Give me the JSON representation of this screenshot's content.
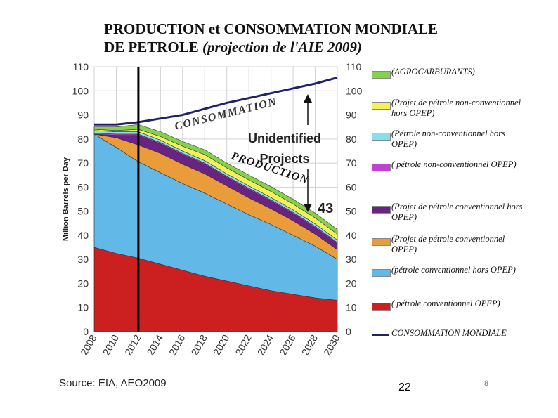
{
  "title_line1": "PRODUCTION et CONSOMMATION MONDIALE",
  "title_line2a": "DE PETROLE ",
  "title_line2b": "(projection de l'AIE 2009)",
  "source": "Source: EIA, AEO2009",
  "page_number": "22",
  "small_number": "8",
  "chart_data": {
    "type": "area",
    "stacked": true,
    "ylabel": "Million Barrels per Day",
    "xlim": [
      2008,
      2030
    ],
    "ylim": [
      0,
      110
    ],
    "x_ticks": [
      2008,
      2010,
      2012,
      2014,
      2016,
      2018,
      2020,
      2022,
      2024,
      2026,
      2028,
      2030
    ],
    "y_ticks": [
      0,
      10,
      20,
      30,
      40,
      50,
      60,
      70,
      80,
      90,
      100,
      110
    ],
    "x": [
      2008,
      2010,
      2012,
      2014,
      2016,
      2018,
      2020,
      2022,
      2024,
      2026,
      2028,
      2030
    ],
    "series": [
      {
        "name": "( pétrole conventionnel  OPEP)",
        "color": "#cc1f1f",
        "values": [
          35,
          32.5,
          30.5,
          28,
          25.5,
          23,
          21,
          19,
          17,
          15.5,
          14,
          13
        ]
      },
      {
        "name": "(pétrole conventionnel hors OPEP)",
        "color": "#62b8e6",
        "values": [
          47,
          44,
          40,
          38,
          36,
          34.5,
          32,
          29.5,
          27.5,
          24.5,
          21.5,
          17
        ]
      },
      {
        "name": "(Projet de pétrole conventionnel OPEP)",
        "color": "#eb9c3a",
        "values": [
          0,
          4,
          7,
          8,
          8,
          8,
          7.5,
          7,
          6.5,
          6,
          5,
          4
        ]
      },
      {
        "name": "(Projet de pétrole conventionnel hors OPEP)",
        "color": "#6a2382",
        "values": [
          0,
          1,
          4,
          4,
          4,
          4,
          3.5,
          3.5,
          3.2,
          3,
          2.7,
          2.5
        ]
      },
      {
        "name": "( pétrole non-conventionnel OPEP)",
        "color": "#c043d0",
        "values": [
          0.5,
          0.5,
          0.5,
          0.5,
          0.5,
          0.5,
          0.5,
          0.5,
          0.5,
          0.5,
          0.5,
          0.5
        ]
      },
      {
        "name": "(Pétrole non-conventionnel hors OPEP)",
        "color": "#86e0ec",
        "values": [
          1,
          1,
          1,
          1,
          1,
          1,
          1,
          1,
          1,
          1,
          1,
          1
        ]
      },
      {
        "name": "(Projet de pétrole non-conventionnel hors OPEP)",
        "color": "#f4f05a",
        "values": [
          0.5,
          0.5,
          1,
          1.5,
          2,
          2.5,
          2.5,
          2.5,
          2.5,
          2.5,
          2.5,
          2.5
        ]
      },
      {
        "name": "(AGROCARBURANTS)",
        "color": "#84d24c",
        "values": [
          1,
          1.5,
          2,
          2,
          2,
          2,
          2,
          2,
          2,
          2,
          2,
          2
        ]
      }
    ],
    "consumption": {
      "name": "CONSOMMATION MONDIALE",
      "color": "#1f2366",
      "values": [
        86,
        86,
        87,
        88.5,
        90,
        92.5,
        95,
        97,
        99,
        101,
        103,
        105.5
      ]
    },
    "marker_year": 2012,
    "annotations": {
      "consumption_label": "CONSOMMATION",
      "production_label": "PRODUCTION",
      "unidentified_line1": "Unidentified",
      "unidentified_line2": "Projects",
      "gap_value": "43"
    },
    "legend_position": "right"
  }
}
